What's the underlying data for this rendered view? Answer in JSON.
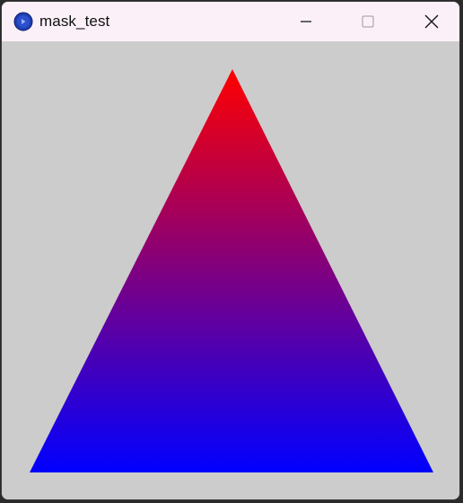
{
  "window": {
    "title": "mask_test",
    "app_icon": "processing-app-icon",
    "controls": {
      "minimize": "minimize-icon",
      "maximize": "maximize-icon",
      "close": "close-icon"
    }
  },
  "canvas": {
    "background_color": "#cccccc",
    "shape": "triangle",
    "gradient": {
      "top_color": "#ff0000",
      "bottom_color": "#0000ff"
    }
  }
}
